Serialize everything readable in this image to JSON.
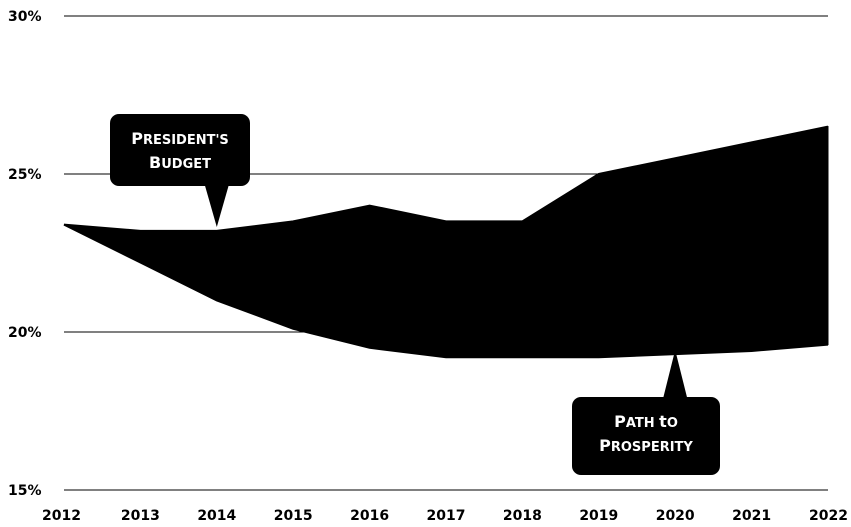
{
  "chart_data": {
    "type": "area",
    "x": [
      2012,
      2013,
      2014,
      2015,
      2016,
      2017,
      2018,
      2019,
      2020,
      2021,
      2022
    ],
    "series": [
      {
        "name": "President's Budget",
        "values": [
          23.4,
          23.2,
          23.2,
          23.5,
          24.0,
          23.5,
          23.5,
          25.0,
          25.5,
          26.0,
          26.5
        ]
      },
      {
        "name": "Path to Prosperity",
        "values": [
          23.4,
          22.2,
          21.0,
          20.1,
          19.5,
          19.2,
          19.2,
          19.2,
          19.3,
          19.4,
          19.6
        ]
      }
    ],
    "ylim": [
      15,
      30
    ],
    "y_ticks": [
      "15%",
      "20%",
      "25%",
      "30%"
    ],
    "x_ticks": [
      "2012",
      "2013",
      "2014",
      "2015",
      "2016",
      "2017",
      "2018",
      "2019",
      "2020",
      "2021",
      "2022"
    ],
    "grid": true,
    "colors": {
      "fill": "#000000",
      "callout": "#000000",
      "callout_text": "#ffffff"
    },
    "annotations": [
      {
        "lines": [
          "President's",
          "Budget"
        ],
        "points_to_x": 2014
      },
      {
        "lines": [
          "Path to",
          "Prosperity"
        ],
        "points_to_x": 2020
      }
    ]
  }
}
